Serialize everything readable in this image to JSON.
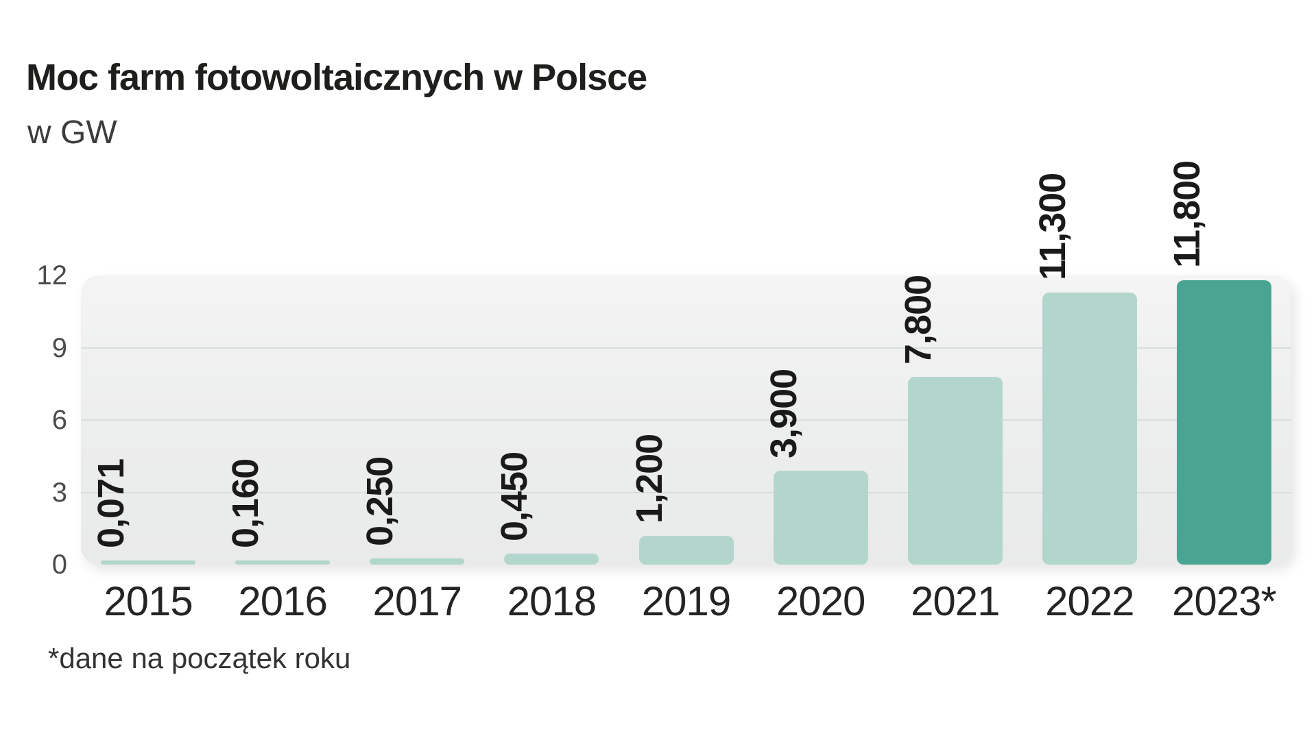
{
  "chart_data": {
    "type": "bar",
    "title": "Moc farm fotowoltaicznych w Polsce",
    "subtitle": "w GW",
    "footnote": "*dane na początek roku",
    "categories": [
      "2015",
      "2016",
      "2017",
      "2018",
      "2019",
      "2020",
      "2021",
      "2022",
      "2023*"
    ],
    "values": [
      0.071,
      0.16,
      0.25,
      0.45,
      1.2,
      3.9,
      7.8,
      11.3,
      11.8
    ],
    "value_labels": [
      "0,071",
      "0,160",
      "0,250",
      "0,450",
      "1,200",
      "3,900",
      "7,800",
      "11,300",
      "11,800"
    ],
    "yticks": [
      0,
      3,
      6,
      9,
      12
    ],
    "ylim": [
      0,
      12
    ],
    "xlabel": "",
    "ylabel": "GW",
    "grid": "horizontal",
    "legend": "none",
    "bar_color": "#b3d6cc",
    "highlight_color": "#4aa492",
    "highlight_index": 8,
    "plot_background": "#eceded",
    "gridline_color": "#d9dde0"
  }
}
